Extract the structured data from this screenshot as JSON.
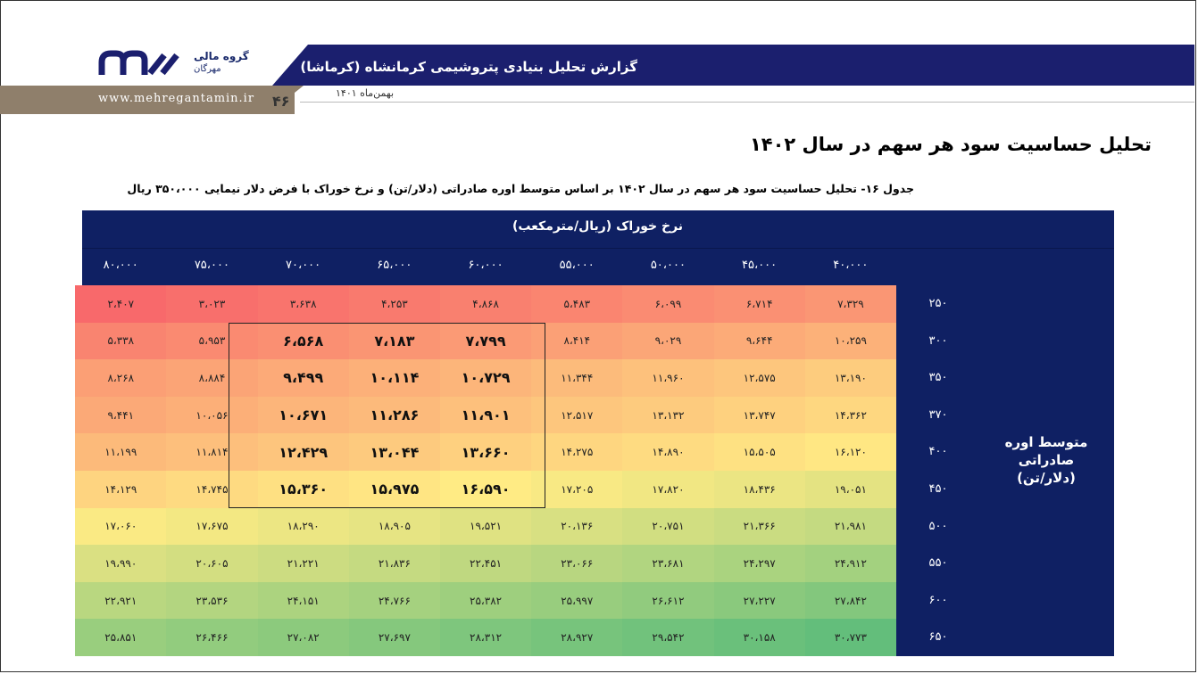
{
  "header": {
    "logo_line1": "گروه مالی",
    "logo_line2": "مهرگان",
    "website": "www.mehregantamin.ir",
    "report_title": "گزارش تحلیل بنیادی پتروشیمی کرمانشاه (کرماشا)",
    "date": "بهمن‌ماه ۱۴۰۱",
    "page_number": "۴۶"
  },
  "section_title": "تحلیل حساسیت سود هر سهم در سال ۱۴۰۲",
  "table_caption": "جدول ۱۶- تحلیل حساسیت سود هر سهم در سال ۱۴۰۲ بر اساس متوسط اوره صادراتی (دلار/تن) و نرخ خوراک با فرض دلار نیمایی ۳۵۰،۰۰۰ ریال",
  "table": {
    "column_group_header": "نرخ خوراک (ریال/مترمکعب)",
    "row_group_header_line1": "متوسط اوره صادراتی",
    "row_group_header_line2": "(دلار/تن)",
    "columns": [
      "۴۰،۰۰۰",
      "۴۵،۰۰۰",
      "۵۰،۰۰۰",
      "۵۵،۰۰۰",
      "۶۰،۰۰۰",
      "۶۵،۰۰۰",
      "۷۰،۰۰۰",
      "۷۵،۰۰۰",
      "۸۰،۰۰۰"
    ],
    "rows": [
      {
        "label": "۲۵۰",
        "values": [
          "۷،۳۲۹",
          "۶،۷۱۴",
          "۶،۰۹۹",
          "۵،۴۸۳",
          "۴،۸۶۸",
          "۴،۲۵۳",
          "۳،۶۳۸",
          "۳،۰۲۳",
          "۲،۴۰۷"
        ]
      },
      {
        "label": "۳۰۰",
        "values": [
          "۱۰،۲۵۹",
          "۹،۶۴۴",
          "۹،۰۲۹",
          "۸،۴۱۴",
          "۷،۷۹۹",
          "۷،۱۸۳",
          "۶،۵۶۸",
          "۵،۹۵۳",
          "۵،۳۳۸"
        ]
      },
      {
        "label": "۳۵۰",
        "values": [
          "۱۳،۱۹۰",
          "۱۲،۵۷۵",
          "۱۱،۹۶۰",
          "۱۱،۳۴۴",
          "۱۰،۷۲۹",
          "۱۰،۱۱۴",
          "۹،۴۹۹",
          "۸،۸۸۴",
          "۸،۲۶۸"
        ]
      },
      {
        "label": "۳۷۰",
        "values": [
          "۱۴،۳۶۲",
          "۱۳،۷۴۷",
          "۱۳،۱۳۲",
          "۱۲،۵۱۷",
          "۱۱،۹۰۱",
          "۱۱،۲۸۶",
          "۱۰،۶۷۱",
          "۱۰،۰۵۶",
          "۹،۴۴۱"
        ]
      },
      {
        "label": "۴۰۰",
        "values": [
          "۱۶،۱۲۰",
          "۱۵،۵۰۵",
          "۱۴،۸۹۰",
          "۱۴،۲۷۵",
          "۱۳،۶۶۰",
          "۱۳،۰۴۴",
          "۱۲،۴۲۹",
          "۱۱،۸۱۴",
          "۱۱،۱۹۹"
        ]
      },
      {
        "label": "۴۵۰",
        "values": [
          "۱۹،۰۵۱",
          "۱۸،۴۳۶",
          "۱۷،۸۲۰",
          "۱۷،۲۰۵",
          "۱۶،۵۹۰",
          "۱۵،۹۷۵",
          "۱۵،۳۶۰",
          "۱۴،۷۴۵",
          "۱۴،۱۲۹"
        ]
      },
      {
        "label": "۵۰۰",
        "values": [
          "۲۱،۹۸۱",
          "۲۱،۳۶۶",
          "۲۰،۷۵۱",
          "۲۰،۱۳۶",
          "۱۹،۵۲۱",
          "۱۸،۹۰۵",
          "۱۸،۲۹۰",
          "۱۷،۶۷۵",
          "۱۷،۰۶۰"
        ]
      },
      {
        "label": "۵۵۰",
        "values": [
          "۲۴،۹۱۲",
          "۲۴،۲۹۷",
          "۲۳،۶۸۱",
          "۲۳،۰۶۶",
          "۲۲،۴۵۱",
          "۲۱،۸۳۶",
          "۲۱،۲۲۱",
          "۲۰،۶۰۵",
          "۱۹،۹۹۰"
        ]
      },
      {
        "label": "۶۰۰",
        "values": [
          "۲۷،۸۴۲",
          "۲۷،۲۲۷",
          "۲۶،۶۱۲",
          "۲۵،۹۹۷",
          "۲۵،۳۸۲",
          "۲۴،۷۶۶",
          "۲۴،۱۵۱",
          "۲۳،۵۳۶",
          "۲۲،۹۲۱"
        ]
      },
      {
        "label": "۶۵۰",
        "values": [
          "۳۰،۷۷۳",
          "۳۰،۱۵۸",
          "۲۹،۵۴۲",
          "۲۸،۹۲۷",
          "۲۸،۳۱۲",
          "۲۷،۶۹۷",
          "۲۷،۰۸۲",
          "۲۶،۴۶۶",
          "۲۵،۸۵۱"
        ]
      }
    ],
    "colors": {
      "header_bg": "#0f2063",
      "low": "#f8696b",
      "mid": "#ffeb84",
      "high": "#63be7b"
    }
  }
}
